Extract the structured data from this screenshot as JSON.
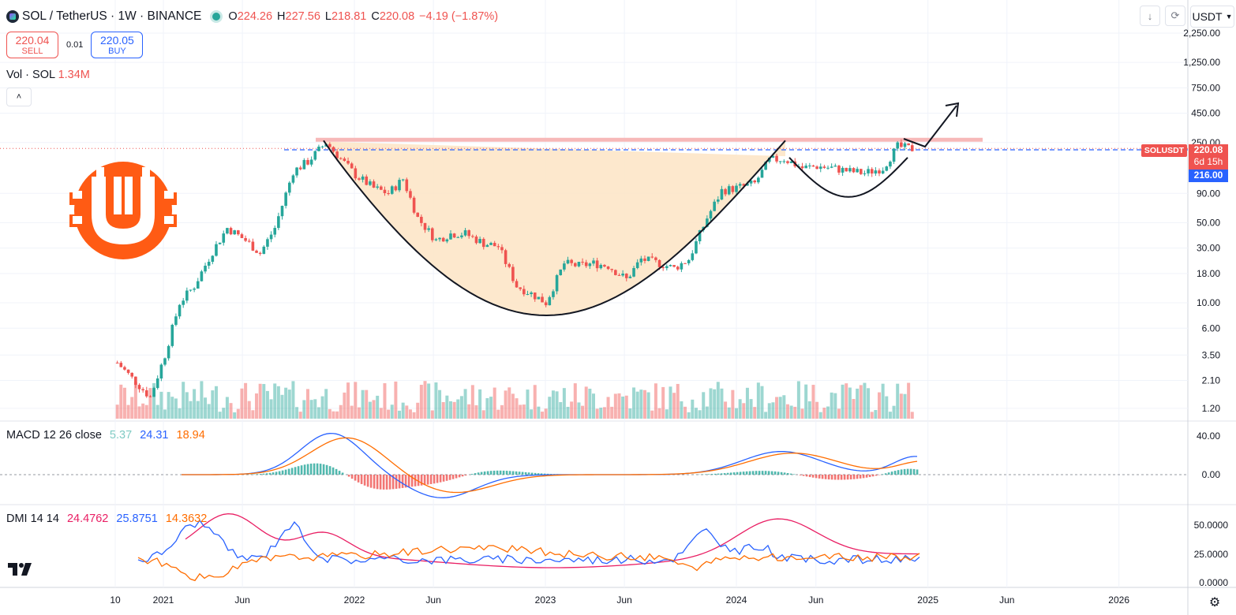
{
  "header": {
    "symbol": "SOL / TetherUS · 1W · BINANCE",
    "open_label": "O",
    "open": "224.26",
    "high_label": "H",
    "high": "227.56",
    "low_label": "L",
    "low": "218.81",
    "close_label": "C",
    "close": "220.08",
    "change": "−4.19 (−1.87%)"
  },
  "trade": {
    "sell_price": "220.04",
    "sell_label": "SELL",
    "spread": "0.01",
    "buy_price": "220.05",
    "buy_label": "BUY"
  },
  "volume": {
    "label": "Vol · SOL",
    "value": "1.34M"
  },
  "macd": {
    "label": "MACD 12 26 close",
    "hist": "5.37",
    "macd": "24.31",
    "signal": "18.94"
  },
  "dmi": {
    "label": "DMI 14 14",
    "adx": "24.4762",
    "plus_di": "25.8751",
    "minus_di": "14.3632"
  },
  "toolbar": {
    "currency": "USDT"
  },
  "price_scale": {
    "labels": [
      "2,250.00",
      "1,250.00",
      "750.00",
      "450.00",
      "250.00",
      "90.00",
      "50.00",
      "30.00",
      "18.00",
      "10.00",
      "6.00",
      "3.50",
      "2.10",
      "1.20"
    ],
    "symbol_tag": "SOLUSDT",
    "last_price": "220.08",
    "countdown": "6d 15h",
    "line_price": "216.00"
  },
  "macd_scale": [
    "40.00",
    "0.00"
  ],
  "dmi_scale": [
    "50.0000",
    "25.0000",
    "0.0000"
  ],
  "time_axis": [
    "10",
    "2021",
    "Jun",
    "2022",
    "Jun",
    "2023",
    "Jun",
    "2024",
    "Jun",
    "2025",
    "Jun",
    "2026"
  ],
  "colors": {
    "up": "#26a69a",
    "down": "#ef5350",
    "macd_line": "#2962ff",
    "signal_line": "#ff6d00",
    "adx": "#e91e63",
    "plus_di": "#2962ff",
    "minus_di": "#ff6d00",
    "cup_fill": "#fde4c4",
    "resistance": "#f7b8b8",
    "dashed_line": "#2962ff"
  },
  "chart_data": {
    "type": "candlestick",
    "scale": "log",
    "y_range": [
      1,
      2800
    ],
    "x_range": [
      "2020-10",
      "2026-05"
    ],
    "resistance_level": 260,
    "current_price_line": 216,
    "pattern": "cup and handle",
    "weekly_closes": [
      [
        "2020-10-05",
        3.0
      ],
      [
        "2020-11-02",
        2.2
      ],
      [
        "2020-12-07",
        1.5
      ],
      [
        "2021-01-04",
        3.5
      ],
      [
        "2021-02-01",
        10
      ],
      [
        "2021-03-01",
        14
      ],
      [
        "2021-04-05",
        28
      ],
      [
        "2021-05-03",
        45
      ],
      [
        "2021-06-07",
        35
      ],
      [
        "2021-07-05",
        27
      ],
      [
        "2021-08-02",
        45
      ],
      [
        "2021-09-06",
        140
      ],
      [
        "2021-10-04",
        170
      ],
      [
        "2021-11-08",
        250
      ],
      [
        "2021-12-06",
        180
      ],
      [
        "2022-01-03",
        130
      ],
      [
        "2022-02-07",
        100
      ],
      [
        "2022-03-07",
        90
      ],
      [
        "2022-04-04",
        120
      ],
      [
        "2022-05-02",
        55
      ],
      [
        "2022-06-06",
        35
      ],
      [
        "2022-07-04",
        40
      ],
      [
        "2022-08-01",
        40
      ],
      [
        "2022-09-05",
        33
      ],
      [
        "2022-10-03",
        31
      ],
      [
        "2022-11-07",
        14
      ],
      [
        "2022-12-05",
        12
      ],
      [
        "2023-01-02",
        10
      ],
      [
        "2023-02-06",
        22
      ],
      [
        "2023-03-06",
        21
      ],
      [
        "2023-04-03",
        22
      ],
      [
        "2023-05-01",
        21
      ],
      [
        "2023-06-05",
        16
      ],
      [
        "2023-07-03",
        24
      ],
      [
        "2023-08-07",
        22
      ],
      [
        "2023-09-04",
        20
      ],
      [
        "2023-10-02",
        24
      ],
      [
        "2023-11-06",
        55
      ],
      [
        "2023-12-04",
        95
      ],
      [
        "2024-01-01",
        100
      ],
      [
        "2024-02-05",
        110
      ],
      [
        "2024-03-04",
        175
      ],
      [
        "2024-04-01",
        180
      ],
      [
        "2024-05-06",
        150
      ],
      [
        "2024-06-03",
        155
      ],
      [
        "2024-07-01",
        150
      ],
      [
        "2024-08-05",
        140
      ],
      [
        "2024-09-02",
        135
      ],
      [
        "2024-10-07",
        150
      ],
      [
        "2024-11-04",
        230
      ],
      [
        "2024-12-02",
        220
      ]
    ]
  }
}
